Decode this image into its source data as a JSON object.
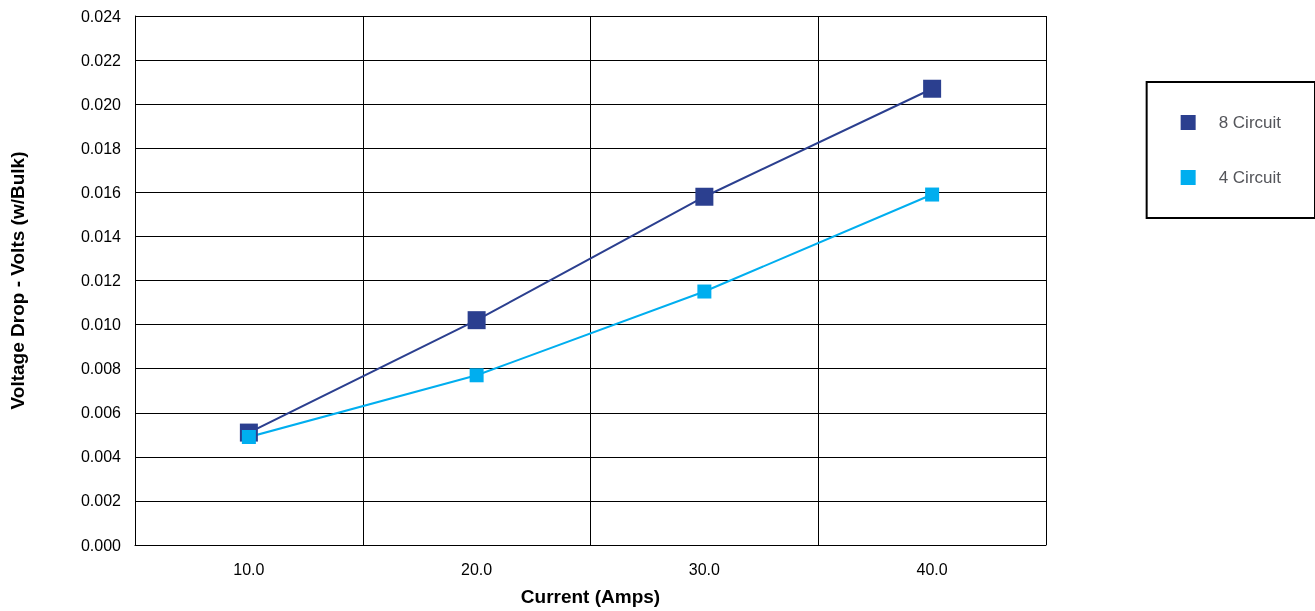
{
  "chart_data": {
    "type": "line",
    "xlabel": "Current (Amps)",
    "ylabel": "Voltage Drop - Volts (w/Bulk)",
    "categories": [
      "10.0",
      "20.0",
      "30.0",
      "40.0"
    ],
    "series": [
      {
        "name": "8 Circuit",
        "color": "#2b3f8f",
        "values": [
          0.0051,
          0.0102,
          0.0158,
          0.0207
        ]
      },
      {
        "name": "4 Circuit",
        "color": "#00aeef",
        "values": [
          0.0049,
          0.0077,
          0.0115,
          0.0159
        ]
      }
    ],
    "ylim": [
      0,
      0.024
    ],
    "yticks": [
      {
        "value": 0,
        "label": "0.000"
      },
      {
        "value": 0.002,
        "label": "0.002"
      },
      {
        "value": 0.004,
        "label": "0.004"
      },
      {
        "value": 0.006,
        "label": "0.006"
      },
      {
        "value": 0.008,
        "label": "0.008"
      },
      {
        "value": 0.01,
        "label": "0.010"
      },
      {
        "value": 0.012,
        "label": "0.012"
      },
      {
        "value": 0.014,
        "label": "0.014"
      },
      {
        "value": 0.016,
        "label": "0.016"
      },
      {
        "value": 0.018,
        "label": "0.018"
      },
      {
        "value": 0.02,
        "label": "0.020"
      },
      {
        "value": 0.022,
        "label": "0.022"
      },
      {
        "value": 0.024,
        "label": "0.024"
      }
    ],
    "grid": true,
    "legend": "right",
    "marker": "square",
    "line_style": "solid"
  }
}
